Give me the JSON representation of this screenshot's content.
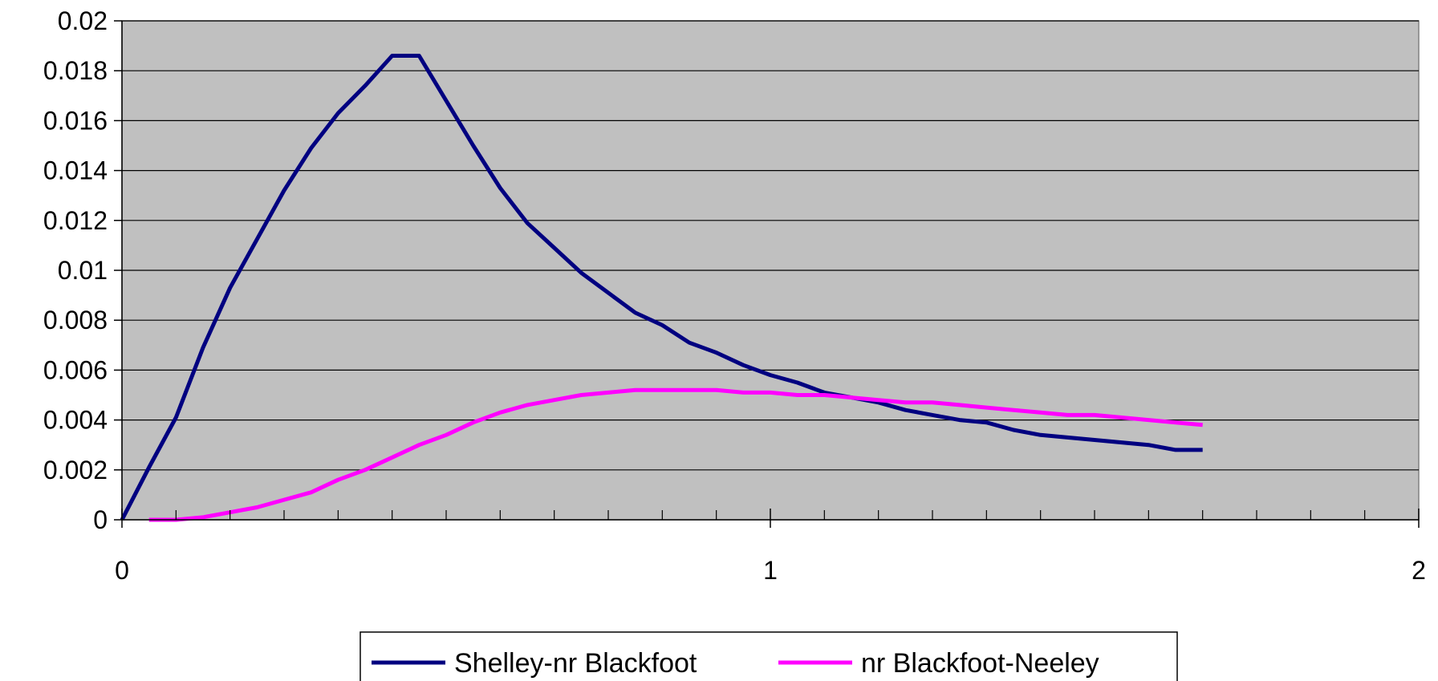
{
  "chart_data": {
    "type": "line",
    "title": "",
    "xlabel": "",
    "ylabel": "",
    "xlim": [
      0,
      2
    ],
    "ylim": [
      0,
      0.02
    ],
    "x_ticks": [
      0,
      1,
      2
    ],
    "x_tick_labels": [
      "0",
      "1",
      "2"
    ],
    "x_minor_step": 0.0833,
    "y_ticks": [
      0,
      0.002,
      0.004,
      0.006,
      0.008,
      0.01,
      0.012,
      0.014,
      0.016,
      0.018,
      0.02
    ],
    "y_tick_labels": [
      "0",
      "0.002",
      "0.004",
      "0.006",
      "0.008",
      "0.01",
      "0.012",
      "0.014",
      "0.016",
      "0.018",
      "0.02"
    ],
    "grid": "horizontal",
    "plot_background": "#c0c0c0",
    "legend_position": "bottom",
    "series": [
      {
        "name": "Shelley-nr Blackfoot",
        "color": "#000080",
        "points": [
          [
            0,
            0
          ],
          [
            0.0417,
            0.0021
          ],
          [
            0.0833,
            0.0041
          ],
          [
            0.125,
            0.0069
          ],
          [
            0.1667,
            0.0093
          ],
          [
            0.25,
            0.0132
          ],
          [
            0.2917,
            0.0149
          ],
          [
            0.3333,
            0.0163
          ],
          [
            0.375,
            0.0174
          ],
          [
            0.4167,
            0.0186
          ],
          [
            0.4583,
            0.0186
          ],
          [
            0.5,
            0.0168
          ],
          [
            0.5417,
            0.015
          ],
          [
            0.5833,
            0.0133
          ],
          [
            0.625,
            0.0119
          ],
          [
            0.6667,
            0.0109
          ],
          [
            0.7083,
            0.0099
          ],
          [
            0.75,
            0.0091
          ],
          [
            0.7917,
            0.0083
          ],
          [
            0.8333,
            0.0078
          ],
          [
            0.875,
            0.0071
          ],
          [
            0.9167,
            0.0067
          ],
          [
            0.9583,
            0.0062
          ],
          [
            1.0,
            0.0058
          ],
          [
            1.0417,
            0.0055
          ],
          [
            1.0833,
            0.0051
          ],
          [
            1.125,
            0.0049
          ],
          [
            1.1667,
            0.0047
          ],
          [
            1.2083,
            0.0044
          ],
          [
            1.25,
            0.0042
          ],
          [
            1.2917,
            0.004
          ],
          [
            1.3333,
            0.0039
          ],
          [
            1.375,
            0.0036
          ],
          [
            1.4167,
            0.0034
          ],
          [
            1.4583,
            0.0033
          ],
          [
            1.5,
            0.0032
          ],
          [
            1.5417,
            0.0031
          ],
          [
            1.5833,
            0.003
          ],
          [
            1.625,
            0.0028
          ],
          [
            1.6667,
            0.0028
          ]
        ]
      },
      {
        "name": "nr Blackfoot-Neeley",
        "color": "#ff00ff",
        "points": [
          [
            0.0417,
            0
          ],
          [
            0.0833,
            0
          ],
          [
            0.125,
            0.0001
          ],
          [
            0.1667,
            0.0003
          ],
          [
            0.2083,
            0.0005
          ],
          [
            0.25,
            0.0008
          ],
          [
            0.2917,
            0.0011
          ],
          [
            0.3333,
            0.0016
          ],
          [
            0.375,
            0.002
          ],
          [
            0.4167,
            0.0025
          ],
          [
            0.4583,
            0.003
          ],
          [
            0.5,
            0.0034
          ],
          [
            0.5417,
            0.0039
          ],
          [
            0.5833,
            0.0043
          ],
          [
            0.625,
            0.0046
          ],
          [
            0.6667,
            0.0048
          ],
          [
            0.7083,
            0.005
          ],
          [
            0.75,
            0.0051
          ],
          [
            0.7917,
            0.0052
          ],
          [
            0.8333,
            0.0052
          ],
          [
            0.875,
            0.0052
          ],
          [
            0.9167,
            0.0052
          ],
          [
            0.9583,
            0.0051
          ],
          [
            1.0,
            0.0051
          ],
          [
            1.0417,
            0.005
          ],
          [
            1.0833,
            0.005
          ],
          [
            1.125,
            0.0049
          ],
          [
            1.1667,
            0.0048
          ],
          [
            1.2083,
            0.0047
          ],
          [
            1.25,
            0.0047
          ],
          [
            1.2917,
            0.0046
          ],
          [
            1.3333,
            0.0045
          ],
          [
            1.375,
            0.0044
          ],
          [
            1.4167,
            0.0043
          ],
          [
            1.4583,
            0.0042
          ],
          [
            1.5,
            0.0042
          ],
          [
            1.5417,
            0.0041
          ],
          [
            1.5833,
            0.004
          ],
          [
            1.625,
            0.0039
          ],
          [
            1.6667,
            0.0038
          ]
        ]
      }
    ]
  }
}
